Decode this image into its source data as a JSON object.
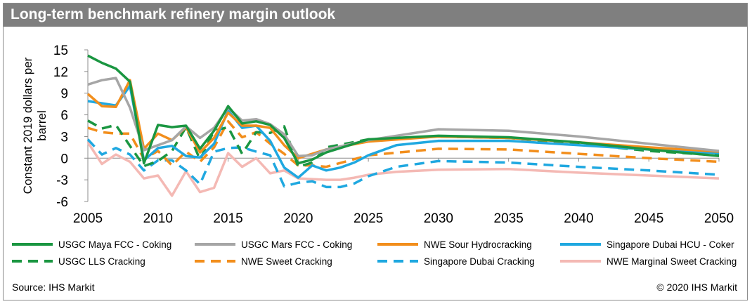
{
  "title": "Long-term benchmark refinery margin outlook",
  "source": "Source: IHS Markit",
  "copyright": "© 2020 IHS Markit",
  "chart_data": {
    "type": "line",
    "ylabel": "Constant 2019 dollars per barrel",
    "xlabel": "",
    "xlim": [
      2005,
      2050
    ],
    "ylim": [
      -6,
      15
    ],
    "xticks": [
      2005,
      2010,
      2015,
      2020,
      2025,
      2030,
      2035,
      2040,
      2045,
      2050
    ],
    "yticks": [
      15,
      12,
      9,
      6,
      3,
      0,
      -3,
      -6
    ],
    "grid": false,
    "legend_position": "bottom",
    "series": [
      {
        "name": "USGC Maya FCC - Coking",
        "color": "#1a9641",
        "dash": "solid",
        "x": [
          2005,
          2006,
          2007,
          2008,
          2009,
          2010,
          2011,
          2012,
          2013,
          2014,
          2015,
          2016,
          2017,
          2018,
          2019,
          2020,
          2021,
          2022,
          2025,
          2030,
          2035,
          2040,
          2045,
          2050
        ],
        "y": [
          14.2,
          13.2,
          12.4,
          10.6,
          -0.7,
          4.6,
          4.3,
          4.5,
          1.3,
          3.8,
          7.2,
          4.8,
          5.1,
          4.6,
          2.8,
          -0.7,
          -0.2,
          0.8,
          2.6,
          3.1,
          2.9,
          2.2,
          1.2,
          0.3
        ]
      },
      {
        "name": "USGC Mars FCC - Coking",
        "color": "#a6a6a6",
        "dash": "solid",
        "x": [
          2005,
          2006,
          2007,
          2008,
          2009,
          2010,
          2011,
          2012,
          2013,
          2014,
          2015,
          2016,
          2017,
          2018,
          2019,
          2020,
          2021,
          2022,
          2025,
          2030,
          2035,
          2040,
          2045,
          2050
        ],
        "y": [
          10.2,
          10.8,
          11.1,
          7.0,
          1.1,
          1.8,
          2.5,
          4.4,
          2.8,
          4.2,
          7.0,
          5.2,
          5.4,
          4.7,
          3.3,
          0.3,
          0.4,
          1.2,
          2.5,
          4.0,
          3.8,
          3.0,
          2.0,
          1.0
        ]
      },
      {
        "name": "NWE Sour Hydrocracking",
        "color": "#f28e1c",
        "dash": "solid",
        "x": [
          2005,
          2006,
          2007,
          2008,
          2009,
          2010,
          2011,
          2012,
          2013,
          2014,
          2015,
          2016,
          2017,
          2018,
          2019,
          2020,
          2021,
          2022,
          2025,
          2030,
          2035,
          2040,
          2045,
          2050
        ],
        "y": [
          8.9,
          7.2,
          7.1,
          10.8,
          1.3,
          3.4,
          2.5,
          4.3,
          0.8,
          2.8,
          6.3,
          4.5,
          4.5,
          4.2,
          1.8,
          0.0,
          0.6,
          1.2,
          2.3,
          3.0,
          2.8,
          2.2,
          1.5,
          0.9
        ]
      },
      {
        "name": "Singapore Dubai HCU - Coker",
        "color": "#1fa8e0",
        "dash": "solid",
        "x": [
          2005,
          2006,
          2007,
          2008,
          2009,
          2010,
          2011,
          2012,
          2013,
          2014,
          2015,
          2016,
          2017,
          2018,
          2019,
          2020,
          2021,
          2022,
          2023,
          2024,
          2025,
          2027,
          2030,
          2035,
          2040,
          2045,
          2050
        ],
        "y": [
          7.9,
          7.6,
          7.3,
          10.0,
          -0.3,
          1.4,
          1.7,
          0.3,
          0.1,
          2.0,
          6.6,
          4.2,
          4.5,
          2.4,
          -1.3,
          -2.7,
          -1.0,
          -1.7,
          -1.3,
          -0.6,
          0.4,
          1.8,
          2.4,
          2.4,
          1.8,
          1.2,
          0.7
        ]
      },
      {
        "name": "USGC LLS Cracking",
        "color": "#1a9641",
        "dash": "dash",
        "x": [
          2005,
          2006,
          2007,
          2008,
          2009,
          2010,
          2011,
          2012,
          2013,
          2014,
          2015,
          2016,
          2017,
          2018,
          2019,
          2020,
          2021,
          2022,
          2025,
          2030,
          2035,
          2040,
          2045,
          2050
        ],
        "y": [
          5.2,
          4.1,
          4.6,
          1.7,
          -1.1,
          -0.4,
          1.0,
          4.3,
          -0.2,
          3.8,
          4.3,
          0.6,
          3.6,
          3.5,
          4.4,
          -1.2,
          -0.6,
          1.5,
          2.6,
          3.0,
          2.8,
          2.0,
          1.0,
          0.4
        ]
      },
      {
        "name": "NWE Sweet Cracking",
        "color": "#f28e1c",
        "dash": "dash",
        "x": [
          2005,
          2006,
          2007,
          2008,
          2009,
          2010,
          2011,
          2012,
          2013,
          2014,
          2015,
          2016,
          2017,
          2018,
          2019,
          2020,
          2021,
          2022,
          2025,
          2030,
          2035,
          2040,
          2045,
          2050
        ],
        "y": [
          4.2,
          3.6,
          3.4,
          3.4,
          -0.1,
          1.0,
          -1.0,
          0.9,
          -0.5,
          1.5,
          5.1,
          2.9,
          3.6,
          2.0,
          0.6,
          -1.0,
          -1.0,
          -1.2,
          0.4,
          1.3,
          1.2,
          0.6,
          0.0,
          -0.5
        ]
      },
      {
        "name": "Singapore Dubai Cracking",
        "color": "#1fa8e0",
        "dash": "dash",
        "x": [
          2005,
          2006,
          2007,
          2008,
          2009,
          2010,
          2011,
          2012,
          2013,
          2014,
          2015,
          2016,
          2017,
          2018,
          2019,
          2020,
          2021,
          2022,
          2023,
          2024,
          2025,
          2027,
          2030,
          2035,
          2040,
          2045,
          2050
        ],
        "y": [
          2.6,
          0.5,
          1.4,
          0.5,
          -1.7,
          -0.3,
          -0.3,
          -1.7,
          -3.6,
          0.9,
          1.4,
          1.5,
          0.9,
          0.4,
          -3.9,
          -3.4,
          -3.2,
          -4.0,
          -4.0,
          -3.5,
          -2.5,
          -1.2,
          -0.4,
          -0.6,
          -1.2,
          -1.7,
          -2.3
        ]
      },
      {
        "name": "NWE Marginal Sweet Cracking",
        "color": "#f4b9b4",
        "dash": "solid",
        "x": [
          2005,
          2006,
          2007,
          2008,
          2009,
          2010,
          2011,
          2012,
          2013,
          2014,
          2015,
          2016,
          2017,
          2018,
          2019,
          2020,
          2021,
          2022,
          2023,
          2024,
          2025,
          2027,
          2030,
          2035,
          2040,
          2045,
          2050
        ],
        "y": [
          2.2,
          -0.8,
          0.5,
          -0.5,
          -2.8,
          -2.4,
          -5.2,
          -1.8,
          -4.7,
          -4.1,
          0.7,
          -1.2,
          0.0,
          -2.1,
          -1.7,
          -2.8,
          -2.9,
          -3.0,
          -3.0,
          -2.7,
          -2.3,
          -1.9,
          -1.6,
          -1.5,
          -2.0,
          -2.4,
          -2.8
        ]
      }
    ]
  }
}
